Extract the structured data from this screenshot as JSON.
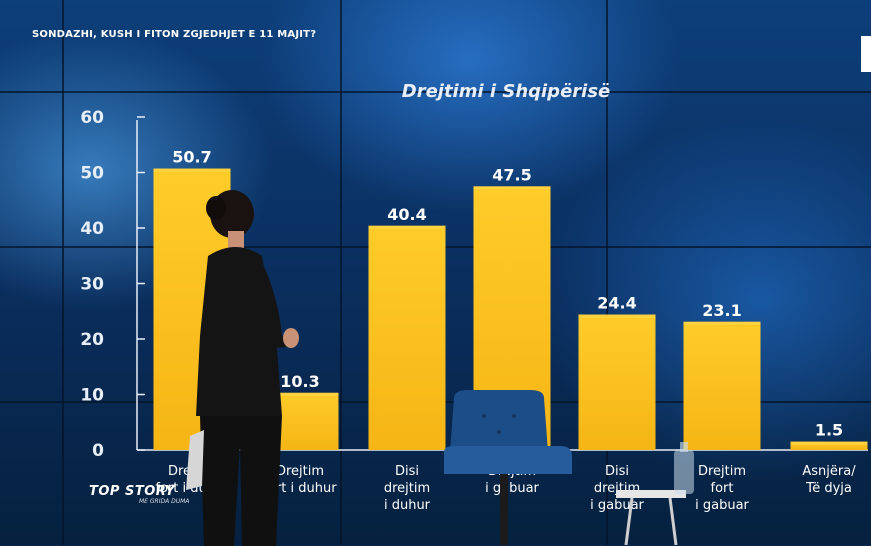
{
  "broadcast": {
    "headline": "SONDAZHI, KUSH I FITON ZGJEDHJET E 11 MAJIT?",
    "show_title": "TOP STORY",
    "show_host": "ME GRIDA DUMA"
  },
  "chart_data": {
    "type": "bar",
    "title": "Drejtimi i Shqipërisë",
    "categories": [
      [
        "Drejtim",
        "fort i duhur"
      ],
      [
        "Drejtim",
        "fort i duhur"
      ],
      [
        "Disi",
        "drejtim",
        "i duhur"
      ],
      [
        "Drejtim",
        "i gabuar"
      ],
      [
        "Disi",
        "drejtim",
        "i gabuar"
      ],
      [
        "Drejtim",
        "fort",
        "i gabuar"
      ],
      [
        "Asnjëra/",
        "Të dyja"
      ]
    ],
    "values": [
      50.7,
      10.3,
      40.4,
      47.5,
      24.4,
      23.1,
      1.5
    ],
    "value_labels": [
      "50.7",
      "10.3",
      "40.4",
      "47.5",
      "24.4",
      "23.1",
      "1.5"
    ],
    "yticks": [
      "0",
      "10",
      "20",
      "30",
      "40",
      "50",
      "60"
    ],
    "ylim": [
      0,
      60
    ],
    "grid": false,
    "legend": "none",
    "colors": {
      "bar": "#f6b21a",
      "bar_light": "#ffd23f",
      "label": "#ffffff",
      "title": "#e8eef8"
    }
  }
}
